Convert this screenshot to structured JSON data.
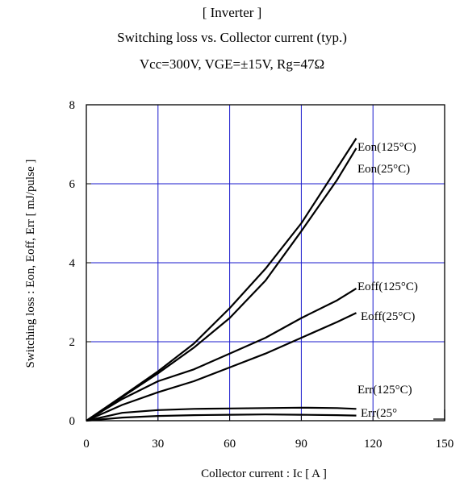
{
  "titles": {
    "line1": "[ Inverter ]",
    "line2": "Switching loss  vs.  Collector current  (typ.)",
    "line3": "Vcc=300V, VGE=±15V, Rg=47Ω"
  },
  "chart_data": {
    "type": "line",
    "xlabel": "Collector current  :  Ic  [ A ]",
    "ylabel": "Switching loss  :  Eon, Eoff, Err  [ mJ/pulse ]",
    "xlim": [
      0,
      150
    ],
    "ylim": [
      0,
      8
    ],
    "xticks": [
      0,
      30,
      60,
      90,
      120,
      150
    ],
    "yticks": [
      0,
      2,
      4,
      6,
      8
    ],
    "grid": true,
    "grid_color": "#1a1acc",
    "line_color": "#000000",
    "series": [
      {
        "name": "Eon(125°C)",
        "x": [
          0,
          15,
          30,
          45,
          60,
          75,
          90,
          105,
          113
        ],
        "y": [
          0,
          0.62,
          1.25,
          1.95,
          2.85,
          3.85,
          5.0,
          6.4,
          7.15
        ]
      },
      {
        "name": "Eon(25°C)",
        "x": [
          0,
          15,
          30,
          45,
          60,
          75,
          90,
          105,
          113
        ],
        "y": [
          0,
          0.6,
          1.2,
          1.85,
          2.6,
          3.55,
          4.8,
          6.1,
          6.9
        ]
      },
      {
        "name": "Eoff(125°C)",
        "x": [
          0,
          15,
          30,
          45,
          60,
          75,
          90,
          105,
          113
        ],
        "y": [
          0,
          0.55,
          1.0,
          1.3,
          1.7,
          2.1,
          2.6,
          3.05,
          3.35
        ]
      },
      {
        "name": "Eoff(25°C)",
        "x": [
          0,
          15,
          30,
          45,
          60,
          75,
          90,
          105,
          113
        ],
        "y": [
          0,
          0.4,
          0.72,
          1.0,
          1.35,
          1.7,
          2.1,
          2.5,
          2.73
        ]
      },
      {
        "name": "Err(125°C)",
        "x": [
          0,
          15,
          30,
          45,
          60,
          75,
          90,
          105,
          113
        ],
        "y": [
          0,
          0.2,
          0.27,
          0.3,
          0.31,
          0.32,
          0.33,
          0.32,
          0.3
        ]
      },
      {
        "name": "Err(25°",
        "x": [
          0,
          15,
          30,
          45,
          60,
          75,
          90,
          105,
          113
        ],
        "y": [
          0,
          0.08,
          0.12,
          0.14,
          0.15,
          0.16,
          0.15,
          0.14,
          0.13
        ]
      }
    ]
  }
}
